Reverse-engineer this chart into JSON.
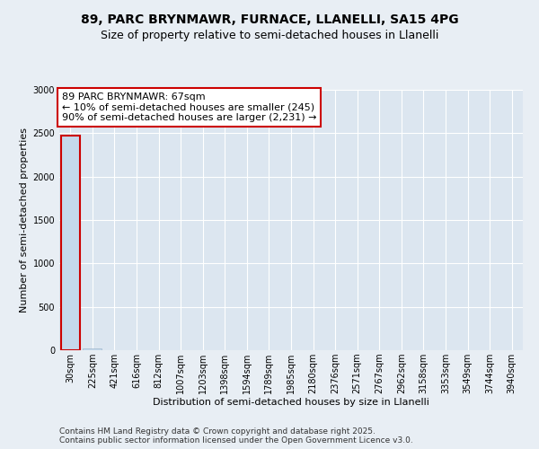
{
  "title1": "89, PARC BRYNMAWR, FURNACE, LLANELLI, SA15 4PG",
  "title2": "Size of property relative to semi-detached houses in Llanelli",
  "xlabel": "Distribution of semi-detached houses by size in Llanelli",
  "ylabel": "Number of semi-detached properties",
  "bar_color": "#c5d8eb",
  "bar_edge_color": "#a0b8cc",
  "highlight_color": "#cc0000",
  "annotation_line1": "89 PARC BRYNMAWR: 67sqm",
  "annotation_line2": "← 10% of semi-detached houses are smaller (245)",
  "annotation_line3": "90% of semi-detached houses are larger (2,231) →",
  "footer1": "Contains HM Land Registry data © Crown copyright and database right 2025.",
  "footer2": "Contains public sector information licensed under the Open Government Licence v3.0.",
  "categories": [
    "30sqm",
    "225sqm",
    "421sqm",
    "616sqm",
    "812sqm",
    "1007sqm",
    "1203sqm",
    "1398sqm",
    "1594sqm",
    "1789sqm",
    "1985sqm",
    "2180sqm",
    "2376sqm",
    "2571sqm",
    "2767sqm",
    "2962sqm",
    "3158sqm",
    "3353sqm",
    "3549sqm",
    "3744sqm",
    "3940sqm"
  ],
  "values": [
    2476,
    18,
    2,
    0,
    0,
    0,
    0,
    0,
    0,
    0,
    0,
    0,
    0,
    0,
    0,
    0,
    0,
    0,
    0,
    0,
    0
  ],
  "highlight_bar_index": 0,
  "ylim": [
    0,
    3000
  ],
  "yticks": [
    0,
    500,
    1000,
    1500,
    2000,
    2500,
    3000
  ],
  "bg_color": "#e8eef4",
  "plot_bg_color": "#dce6f0",
  "grid_color": "#ffffff",
  "title_fontsize": 10,
  "subtitle_fontsize": 9,
  "tick_fontsize": 7,
  "axis_label_fontsize": 8,
  "annotation_fontsize": 8,
  "footer_fontsize": 6.5
}
